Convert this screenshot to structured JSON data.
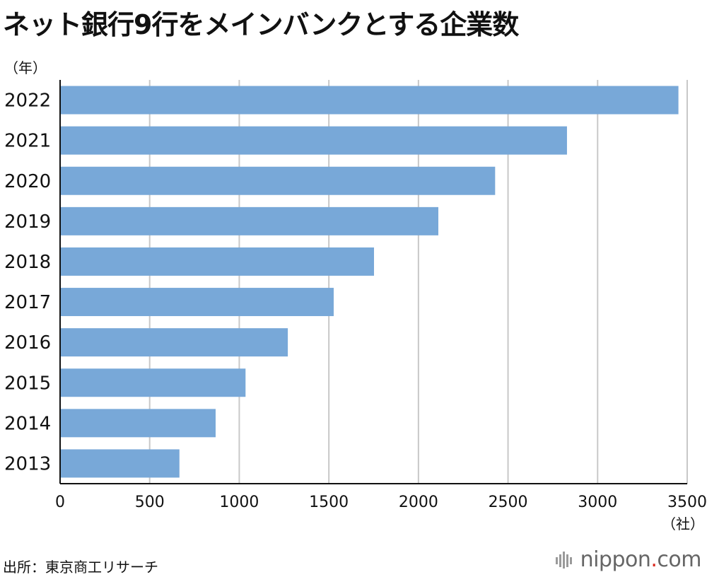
{
  "chart_data": {
    "type": "bar",
    "orientation": "horizontal",
    "title": "ネット銀行9行をメインバンクとする企業数",
    "ylabel": "（年）",
    "xlabel": "（社）",
    "categories": [
      "2022",
      "2021",
      "2020",
      "2019",
      "2018",
      "2017",
      "2016",
      "2015",
      "2014",
      "2013"
    ],
    "values": [
      3451,
      2829,
      2428,
      2111,
      1752,
      1527,
      1271,
      1035,
      868,
      666
    ],
    "xlim": [
      0,
      3500
    ],
    "xticks": [
      0,
      500,
      1000,
      1500,
      2000,
      2500,
      3000,
      3500
    ],
    "grid": true,
    "bar_color": "#78a8d8"
  },
  "source": "出所：東京商工リサーチ",
  "brand": {
    "name": "nippon",
    "dot": ".",
    "suffix": "com",
    "dot_color": "#d9281e"
  }
}
